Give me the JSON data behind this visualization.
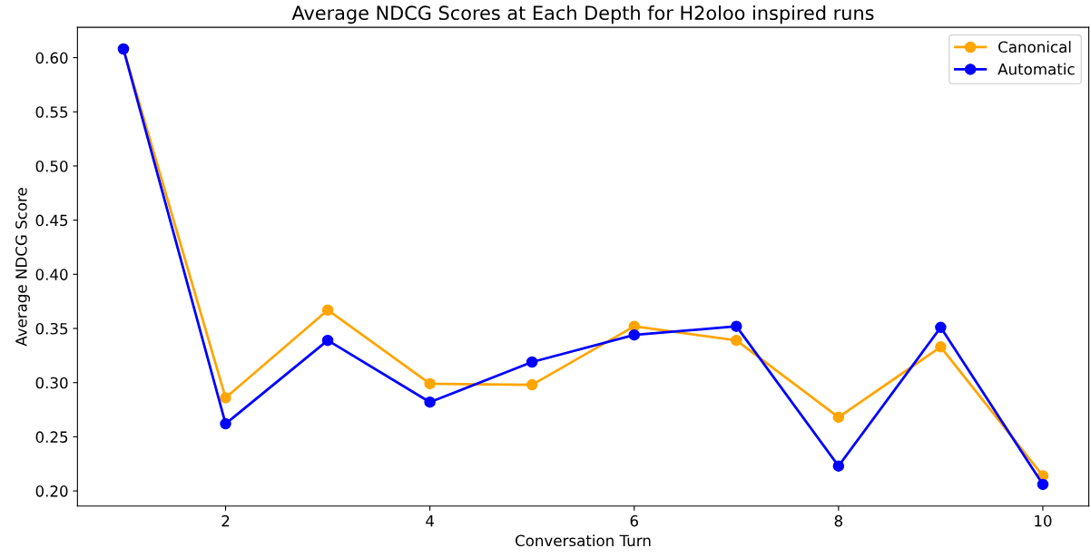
{
  "chart_data": {
    "type": "line",
    "title": "Average NDCG Scores at Each Depth for H2oloo inspired runs",
    "xlabel": "Conversation Turn",
    "ylabel": "Average NDCG Score",
    "x": [
      1,
      2,
      3,
      4,
      5,
      6,
      7,
      8,
      9,
      10
    ],
    "series": [
      {
        "name": "Canonical",
        "color": "#ffa500",
        "values": [
          0.608,
          0.286,
          0.367,
          0.299,
          0.298,
          0.352,
          0.339,
          0.268,
          0.333,
          0.214
        ]
      },
      {
        "name": "Automatic",
        "color": "#0000ff",
        "values": [
          0.608,
          0.262,
          0.339,
          0.282,
          0.319,
          0.344,
          0.352,
          0.223,
          0.351,
          0.206
        ]
      }
    ],
    "xlim": [
      0.55,
      10.45
    ],
    "xticks": [
      2,
      4,
      6,
      8,
      10
    ],
    "ylim": [
      0.186,
      0.628
    ],
    "yticks": [
      {
        "value": 0.2,
        "label": "0.20"
      },
      {
        "value": 0.25,
        "label": "0.25"
      },
      {
        "value": 0.3,
        "label": "0.30"
      },
      {
        "value": 0.35,
        "label": "0.35"
      },
      {
        "value": 0.4,
        "label": "0.40"
      },
      {
        "value": 0.45,
        "label": "0.45"
      },
      {
        "value": 0.5,
        "label": "0.50"
      },
      {
        "value": 0.55,
        "label": "0.55"
      },
      {
        "value": 0.6,
        "label": "0.60"
      }
    ],
    "marker": "circle",
    "line_style": "solid",
    "legend": "top right",
    "grid": false
  }
}
